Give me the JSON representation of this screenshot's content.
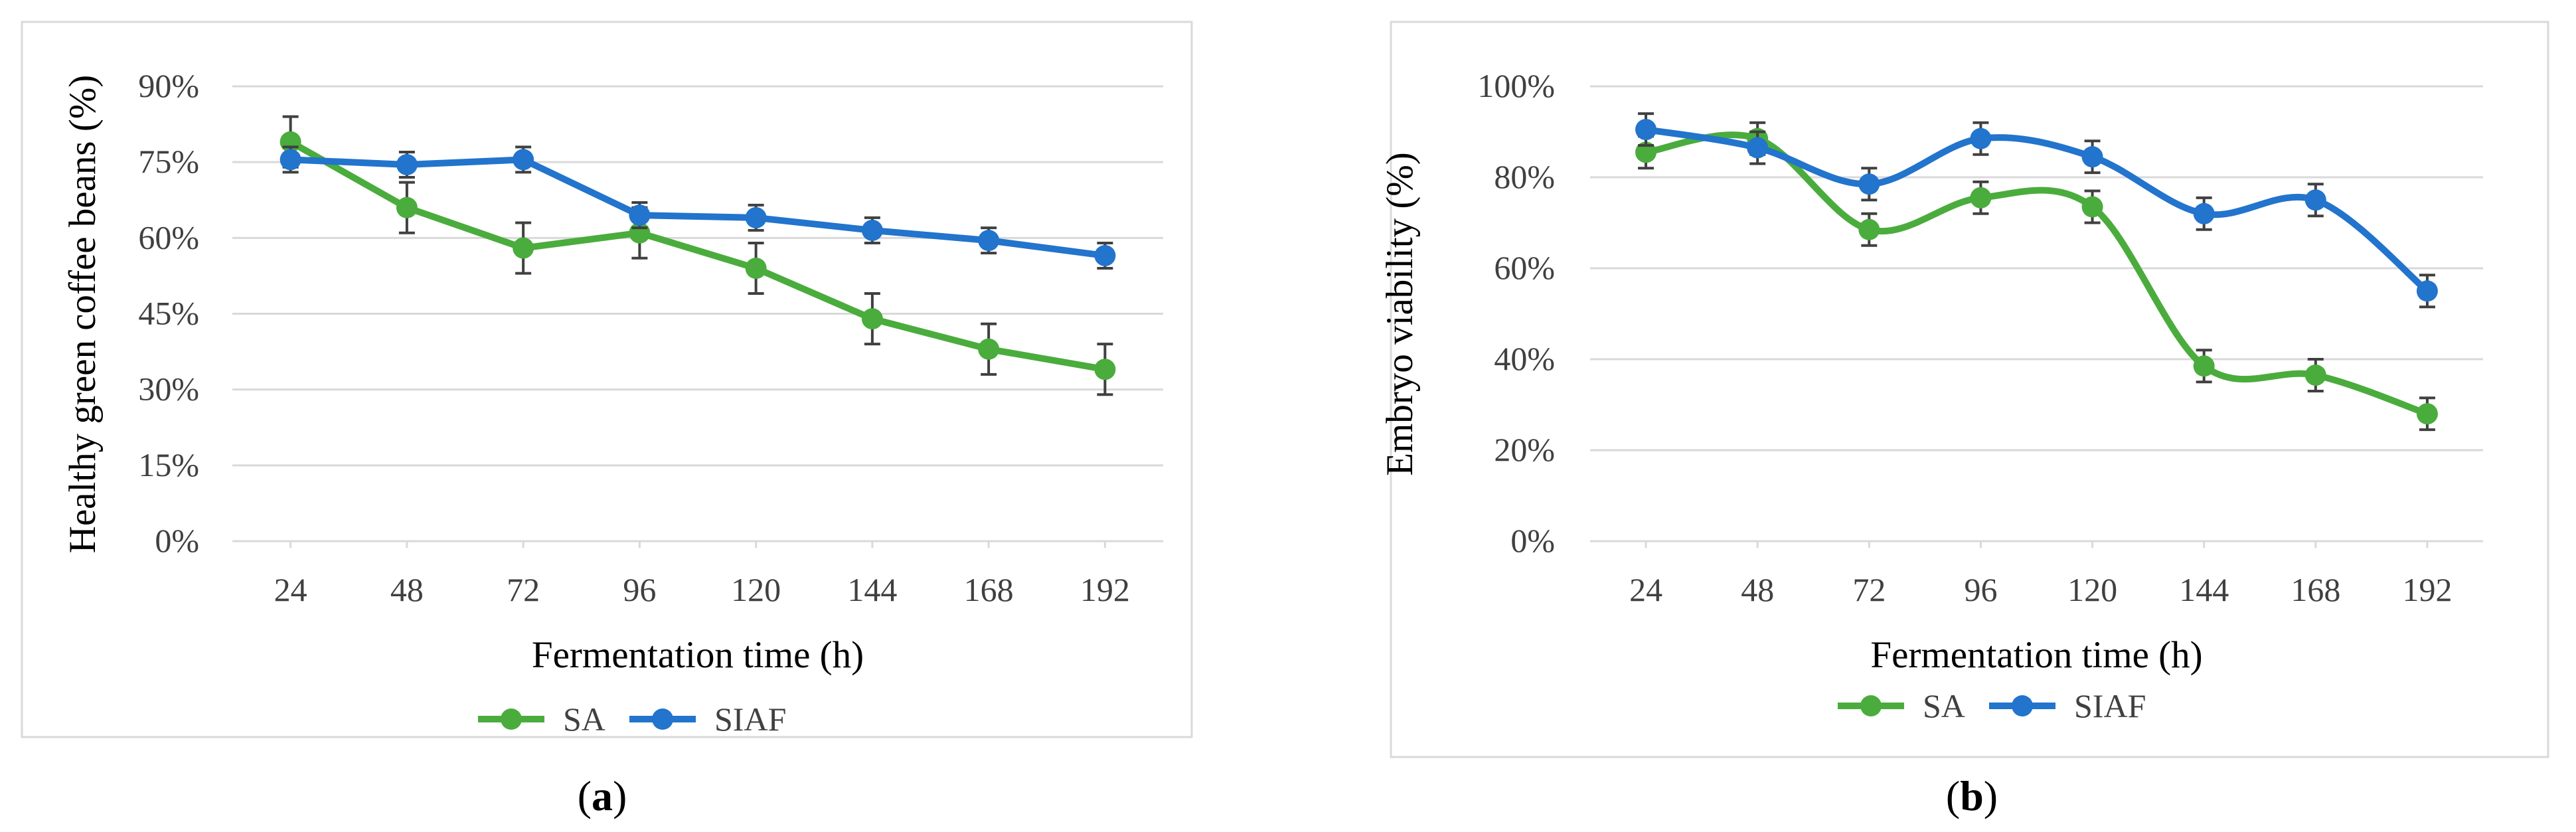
{
  "colors": {
    "SA": "#4aac3c",
    "SIAF": "#2274cc",
    "grid": "#d9d9d9",
    "frame": "#d9d9d9"
  },
  "chart_data": [
    {
      "type": "line",
      "panel_label": "(a)",
      "panel_letter": "a",
      "xlabel": "Fermentation time (h)",
      "ylabel": "Healthy green coffee beans (%)",
      "categories": [
        "24",
        "48",
        "72",
        "96",
        "120",
        "144",
        "168",
        "192"
      ],
      "ylim": [
        0,
        90
      ],
      "yticks": [
        0,
        15,
        30,
        45,
        60,
        75,
        90
      ],
      "ytick_labels": [
        "0%",
        "15%",
        "30%",
        "45%",
        "60%",
        "75%",
        "90%"
      ],
      "smooth": false,
      "grid": true,
      "legend_position": "bottom",
      "series": [
        {
          "name": "SA",
          "color": "#4aac3c",
          "values": [
            79,
            66,
            58,
            61,
            54,
            44,
            38,
            34
          ],
          "errors": [
            5,
            5,
            5,
            5,
            5,
            5,
            5,
            5
          ]
        },
        {
          "name": "SIAF",
          "color": "#2274cc",
          "values": [
            75.5,
            74.5,
            75.5,
            64.5,
            64,
            61.5,
            59.5,
            56.5
          ],
          "errors": [
            2.5,
            2.5,
            2.5,
            2.5,
            2.5,
            2.5,
            2.5,
            2.5
          ]
        }
      ]
    },
    {
      "type": "line",
      "panel_label": "(b)",
      "panel_letter": "b",
      "xlabel": "Fermentation time (h)",
      "ylabel": "Embryo viability (%)",
      "categories": [
        "24",
        "48",
        "72",
        "96",
        "120",
        "144",
        "168",
        "192"
      ],
      "ylim": [
        0,
        100
      ],
      "yticks": [
        0,
        20,
        40,
        60,
        80,
        100
      ],
      "ytick_labels": [
        "0%",
        "20%",
        "40%",
        "60%",
        "80%",
        "100%"
      ],
      "smooth": true,
      "grid": true,
      "legend_position": "bottom",
      "series": [
        {
          "name": "SA",
          "color": "#4aac3c",
          "values": [
            85.5,
            88.5,
            68.5,
            75.5,
            73.5,
            38.5,
            36.5,
            28
          ],
          "errors": [
            3.5,
            3.5,
            3.5,
            3.5,
            3.5,
            3.5,
            3.5,
            3.5
          ]
        },
        {
          "name": "SIAF",
          "color": "#2274cc",
          "values": [
            90.5,
            86.5,
            78.5,
            88.5,
            84.5,
            72,
            75,
            55
          ],
          "errors": [
            3.5,
            3.5,
            3.5,
            3.5,
            3.5,
            3.5,
            3.5,
            3.5
          ]
        }
      ]
    }
  ]
}
